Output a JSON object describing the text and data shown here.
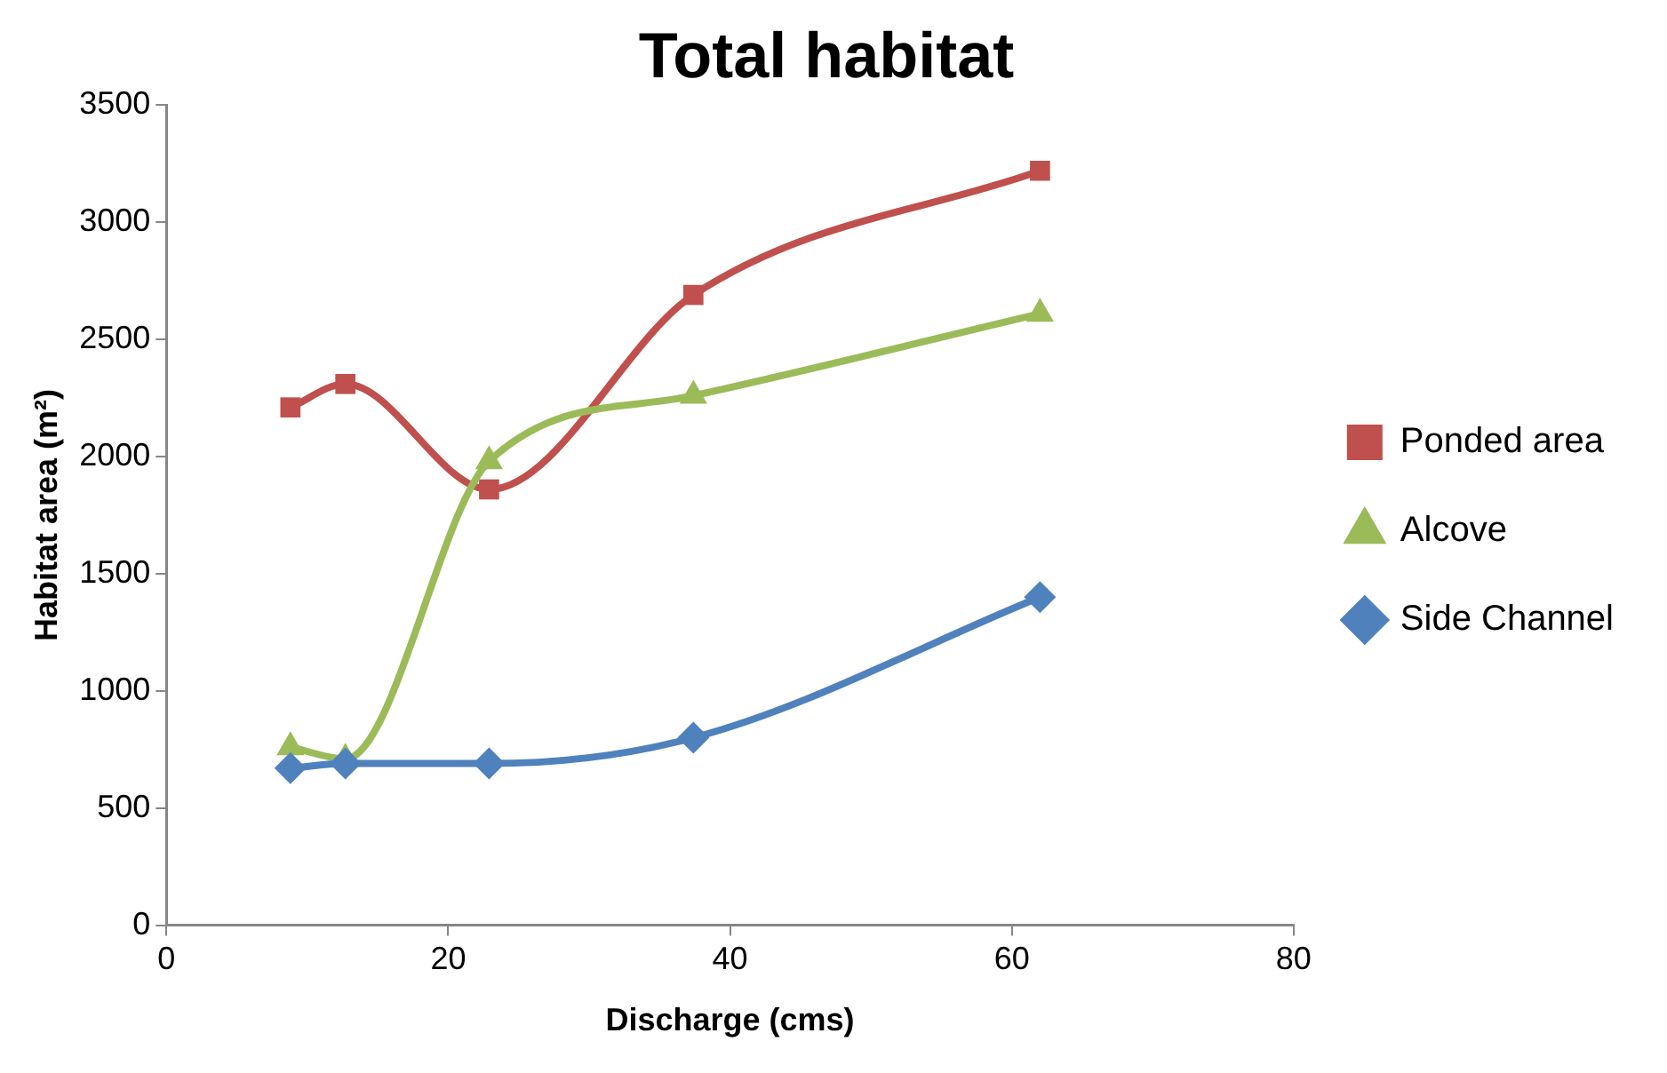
{
  "chart_data": {
    "type": "line",
    "title": "Total habitat",
    "xlabel": "Discharge (cms)",
    "ylabel": "Habitat area (m²)",
    "xlim": [
      0,
      80
    ],
    "xticks": [
      0,
      20,
      40,
      60,
      80
    ],
    "ylim": [
      0,
      3500
    ],
    "yticks": [
      0,
      500,
      1000,
      1500,
      2000,
      2500,
      3000,
      3500
    ],
    "grid": false,
    "legend": "right",
    "line_style": "solid",
    "series": [
      {
        "name": "Ponded area",
        "color": "#c0504d",
        "marker": "square",
        "x": [
          8.8,
          12.7,
          22.9,
          37.4,
          62
        ],
        "values": [
          2210,
          2310,
          1860,
          2690,
          3220
        ]
      },
      {
        "name": "Alcove",
        "color": "#9bbb59",
        "marker": "triangle",
        "x": [
          8.8,
          12.7,
          22.9,
          37.4,
          62
        ],
        "values": [
          760,
          710,
          1980,
          2260,
          2610
        ]
      },
      {
        "name": "Side Channel",
        "color": "#4f81bd",
        "marker": "diamond",
        "x": [
          8.8,
          12.7,
          22.9,
          37.4,
          62
        ],
        "values": [
          670,
          690,
          690,
          800,
          1400
        ]
      }
    ]
  }
}
